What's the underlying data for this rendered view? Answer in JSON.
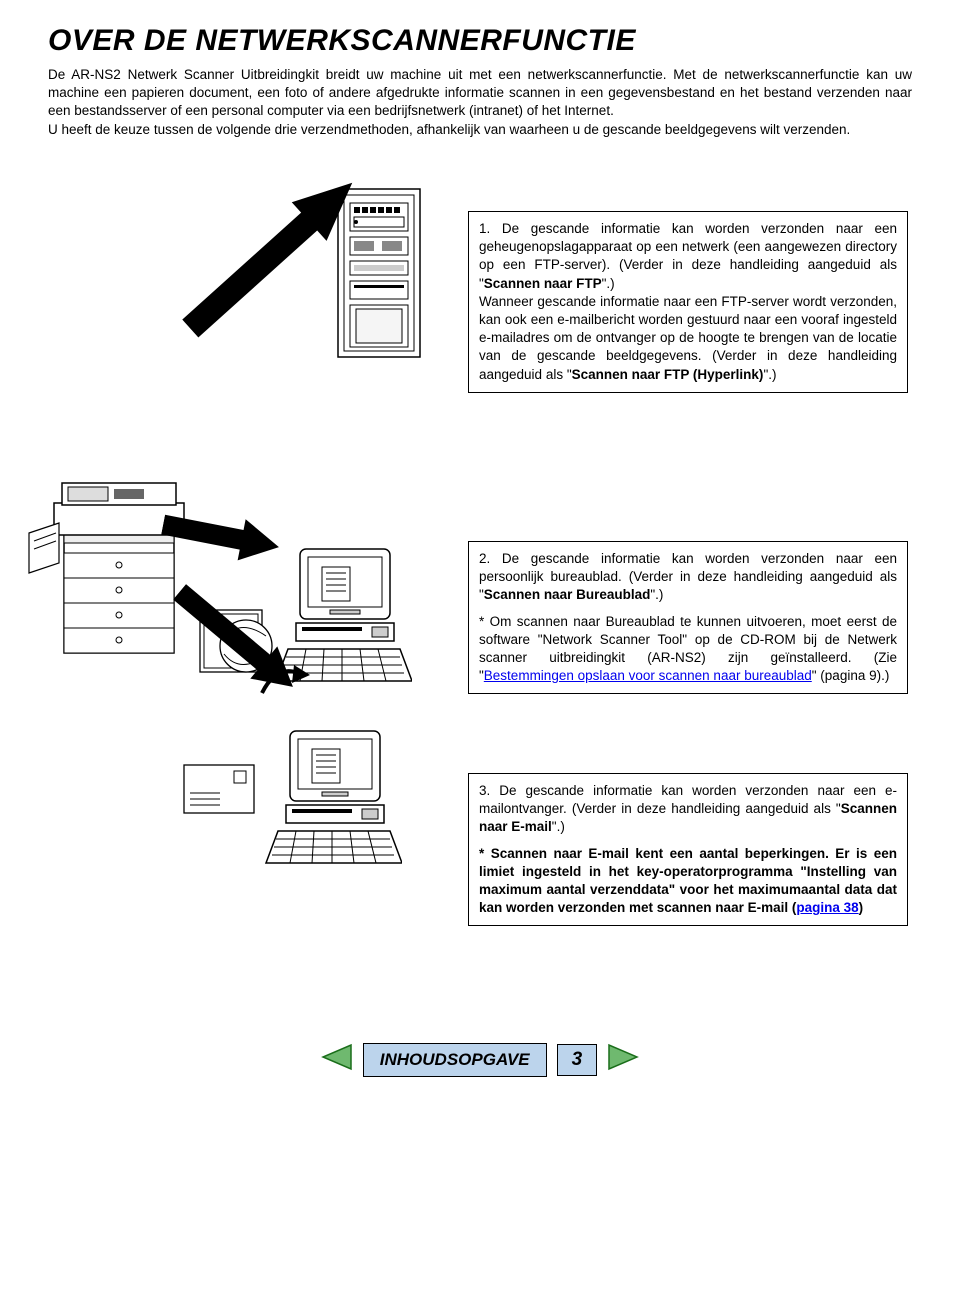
{
  "title": "OVER DE NETWERKSCANNERFUNCTIE",
  "intro": "De AR-NS2 Netwerk Scanner Uitbreidingkit breidt uw machine uit met een netwerkscannerfunctie. Met de netwerkscannerfunctie kan uw machine een papieren document, een foto of andere afgedrukte informatie scannen in een gegevensbestand en het bestand verzenden naar een bestandsserver of een personal computer via een bedrijfsnetwerk (intranet) of het Internet.\nU heeft de keuze tussen de volgende drie verzendmethoden, afhankelijk van waarheen u de gescande beeldgegevens wilt verzenden.",
  "box1": {
    "p1a": "1. De gescande informatie kan worden verzonden naar een geheugenopslagapparaat op een netwerk (een aangewezen directory op een FTP-server). (Verder in deze handleiding aangeduid als \"",
    "p1b": "Scannen naar FTP",
    "p1c": "\".)",
    "p2a": "Wanneer gescande informatie naar een FTP-server wordt verzonden, kan ook een e-mailbericht worden gestuurd naar een vooraf ingesteld e-mailadres om de ontvanger op de hoogte te brengen van de locatie van de gescande beeldgegevens. (Verder in deze handleiding aangeduid als \"",
    "p2b": "Scannen naar FTP (Hyperlink)",
    "p2c": "\".)"
  },
  "box2": {
    "p1a": "2. De gescande informatie kan worden verzonden naar een persoonlijk bureaublad. (Verder in deze handleiding aangeduid als \"",
    "p1b": "Scannen naar Bureaublad",
    "p1c": "\".)",
    "p2a": "* Om scannen naar Bureaublad te kunnen uitvoeren, moet eerst de software \"Network Scanner Tool\" op de CD-ROM bij de Netwerk scanner uitbreidingkit (AR-NS2) zijn geïnstalleerd. (Zie \"",
    "p2link": "Bestemmingen opslaan voor scannen naar bureaublad",
    "p2b": "\" (pagina 9).)"
  },
  "box3": {
    "p1a": "3. De gescande informatie kan worden verzonden naar een e-mailontvanger. (Verder in deze handleiding aangeduid als \"",
    "p1b": "Scannen naar E-mail",
    "p1c": "\".)",
    "p2a": "* Scannen naar E-mail kent een aantal beperkingen. Er is een limiet ingesteld in het key-operatorprogramma \"Instelling van maximum aantal verzenddata\" voor het maximumaantal data dat kan worden verzonden met scannen naar E-mail (",
    "p2link": "pagina 38",
    "p2b": ")"
  },
  "footer": {
    "toc": "INHOUDSOPGAVE",
    "page": "3"
  },
  "colors": {
    "nav_bg": "#bcd4ec",
    "nav_border": "#000000",
    "tri_green": "#6fb96f",
    "tri_green_stroke": "#1a6e1a",
    "link": "#0000ee"
  }
}
